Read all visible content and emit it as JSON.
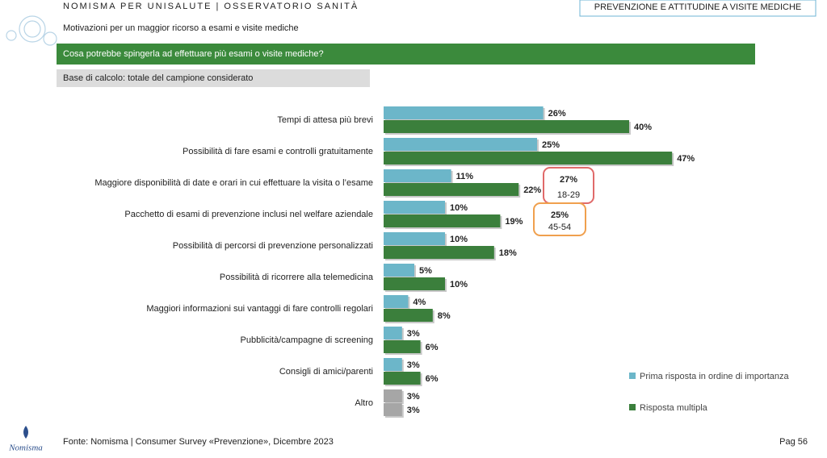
{
  "header": {
    "kicker": "NOMISMA PER UNISALUTE | OSSERVATORIO SANITÀ",
    "section": "PREVENZIONE E ATTITUDINE A VISITE MEDICHE",
    "title": "Motivazioni per un maggior ricorso a esami e visite mediche",
    "question": "Cosa potrebbe spingerla ad effettuare più esami o visite mediche?",
    "base": "Base di calcolo: totale del campione considerato"
  },
  "chart_data": {
    "type": "bar",
    "orientation": "horizontal",
    "categories": [
      "Tempi di attesa più brevi",
      "Possibilità di fare esami e controlli gratuitamente",
      "Maggiore disponibilità di date e orari in cui effettuare la visita o l’esame",
      "Pacchetto di esami di prevenzione inclusi nel welfare aziendale",
      "Possibilità di percorsi di prevenzione personalizzati",
      "Possibilità di ricorrere alla telemedicina",
      "Maggiori informazioni sui vantaggi di fare controlli regolari",
      "Pubblicità/campagne di screening",
      "Consigli di amici/parenti",
      "Altro"
    ],
    "series": [
      {
        "name": "Prima risposta in ordine di importanza",
        "color": "#6cb6c9",
        "colors": [
          "#6cb6c9",
          "#6cb6c9",
          "#6cb6c9",
          "#6cb6c9",
          "#6cb6c9",
          "#6cb6c9",
          "#6cb6c9",
          "#6cb6c9",
          "#6cb6c9",
          "#a6a6a6"
        ],
        "values": [
          26,
          25,
          11,
          10,
          10,
          5,
          4,
          3,
          3,
          3
        ],
        "value_labels": [
          "26%",
          "25%",
          "11%",
          "10%",
          "10%",
          "5%",
          "4%",
          "3%",
          "3%",
          "3%"
        ]
      },
      {
        "name": "Risposta multipla",
        "color": "#3b7f3c",
        "colors": [
          "#3b7f3c",
          "#3b7f3c",
          "#3b7f3c",
          "#3b7f3c",
          "#3b7f3c",
          "#3b7f3c",
          "#3b7f3c",
          "#3b7f3c",
          "#3b7f3c",
          "#a6a6a6"
        ],
        "values": [
          40,
          47,
          22,
          19,
          18,
          10,
          8,
          6,
          6,
          3
        ],
        "value_labels": [
          "40%",
          "47%",
          "22%",
          "19%",
          "18%",
          "10%",
          "8%",
          "6%",
          "6%",
          "3%"
        ]
      }
    ],
    "annotations": [
      {
        "value": 27,
        "value_label": "27%",
        "note": "18-29",
        "color": "#e06a6a"
      },
      {
        "value": 25,
        "value_label": "25%",
        "note": "45-54",
        "color": "#f0a04e"
      }
    ],
    "legend": "bottom-right"
  },
  "footer": {
    "source": "Fonte: Nomisma | Consumer Survey «Prevenzione», Dicembre 2023",
    "page": "Pag 56",
    "logo": "Nomisma"
  }
}
